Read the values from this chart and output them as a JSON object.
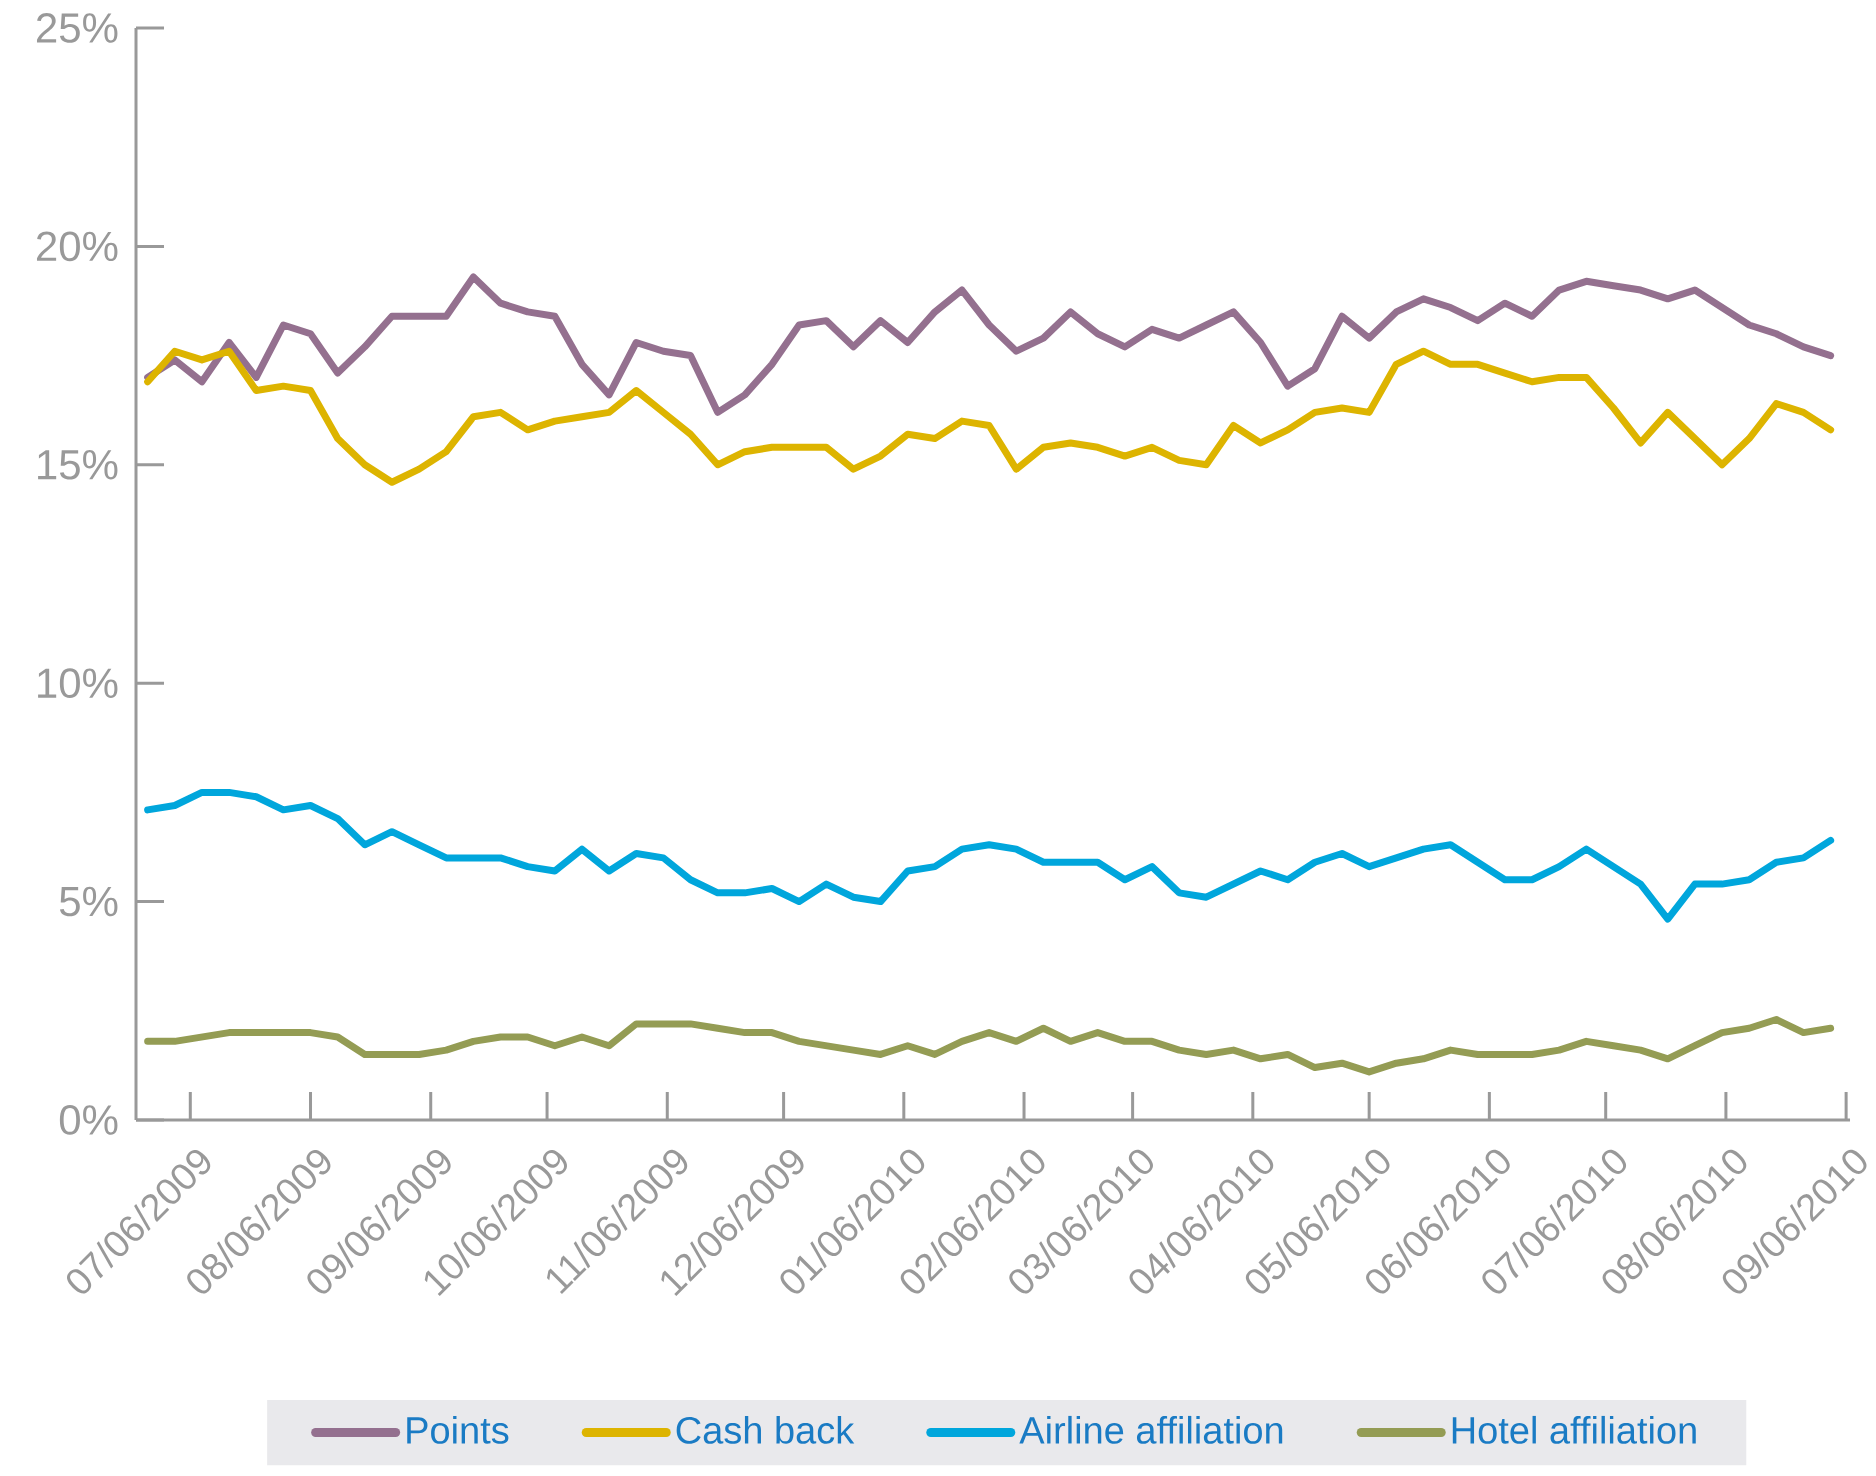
{
  "chart_data": {
    "type": "line",
    "legend": "bottom",
    "grid": false,
    "marker": "none",
    "line_style": "solid",
    "x": [
      "2009-06-25",
      "2009-07-02",
      "2009-07-09",
      "2009-07-16",
      "2009-07-23",
      "2009-07-30",
      "2009-08-06",
      "2009-08-13",
      "2009-08-20",
      "2009-08-27",
      "2009-09-03",
      "2009-09-10",
      "2009-09-17",
      "2009-09-24",
      "2009-10-01",
      "2009-10-08",
      "2009-10-15",
      "2009-10-22",
      "2009-10-29",
      "2009-11-05",
      "2009-11-12",
      "2009-11-19",
      "2009-11-26",
      "2009-12-03",
      "2009-12-10",
      "2009-12-17",
      "2009-12-24",
      "2009-12-31",
      "2010-01-07",
      "2010-01-14",
      "2010-01-21",
      "2010-01-28",
      "2010-02-04",
      "2010-02-11",
      "2010-02-18",
      "2010-02-25",
      "2010-03-04",
      "2010-03-11",
      "2010-03-18",
      "2010-03-25",
      "2010-04-01",
      "2010-04-08",
      "2010-04-15",
      "2010-04-22",
      "2010-04-29",
      "2010-05-06",
      "2010-05-13",
      "2010-05-20",
      "2010-05-27",
      "2010-06-03",
      "2010-06-10",
      "2010-06-17",
      "2010-06-24",
      "2010-07-01",
      "2010-07-08",
      "2010-07-15",
      "2010-07-22",
      "2010-07-29",
      "2010-08-05",
      "2010-08-12",
      "2010-08-19",
      "2010-08-26",
      "2010-09-02"
    ],
    "xlim": [
      "2009-06-22",
      "2010-09-07"
    ],
    "xticks": [
      {
        "value": "2009-07-06",
        "label": "07/06/2009"
      },
      {
        "value": "2009-08-06",
        "label": "08/06/2009"
      },
      {
        "value": "2009-09-06",
        "label": "09/06/2009"
      },
      {
        "value": "2009-10-06",
        "label": "10/06/2009"
      },
      {
        "value": "2009-11-06",
        "label": "11/06/2009"
      },
      {
        "value": "2009-12-06",
        "label": "12/06/2009"
      },
      {
        "value": "2010-01-06",
        "label": "01/06/2010"
      },
      {
        "value": "2010-02-06",
        "label": "02/06/2010"
      },
      {
        "value": "2010-03-06",
        "label": "03/06/2010"
      },
      {
        "value": "2010-04-06",
        "label": "04/06/2010"
      },
      {
        "value": "2010-05-06",
        "label": "05/06/2010"
      },
      {
        "value": "2010-06-06",
        "label": "06/06/2010"
      },
      {
        "value": "2010-07-06",
        "label": "07/06/2010"
      },
      {
        "value": "2010-08-06",
        "label": "08/06/2010"
      },
      {
        "value": "2010-09-06",
        "label": "09/06/2010"
      }
    ],
    "ylim": [
      0,
      25
    ],
    "yticks": [
      {
        "value": 0,
        "label": "0%"
      },
      {
        "value": 5,
        "label": "5%"
      },
      {
        "value": 10,
        "label": "10%"
      },
      {
        "value": 15,
        "label": "15%"
      },
      {
        "value": 20,
        "label": "20%"
      },
      {
        "value": 25,
        "label": "25%"
      }
    ],
    "series": [
      {
        "name": "Points",
        "color": "#94708f",
        "values": [
          17.0,
          17.4,
          16.9,
          17.8,
          17.0,
          18.2,
          18.0,
          17.1,
          17.7,
          18.4,
          18.4,
          18.4,
          19.3,
          18.7,
          18.5,
          18.4,
          17.3,
          16.6,
          17.8,
          17.6,
          17.5,
          16.2,
          16.6,
          17.3,
          18.2,
          18.3,
          17.7,
          18.3,
          17.8,
          18.5,
          19.0,
          18.2,
          17.6,
          17.9,
          18.5,
          18.0,
          17.7,
          18.1,
          17.9,
          18.2,
          18.5,
          17.8,
          16.8,
          17.2,
          18.4,
          17.9,
          18.5,
          18.8,
          18.6,
          18.3,
          18.7,
          18.4,
          19.0,
          19.2,
          19.1,
          19.0,
          18.8,
          19.0,
          18.6,
          18.2,
          18.0,
          17.7,
          17.5
        ]
      },
      {
        "name": "Cash back",
        "color": "#ddb400",
        "values": [
          16.9,
          17.6,
          17.4,
          17.6,
          16.7,
          16.8,
          16.7,
          15.6,
          15.0,
          14.6,
          14.9,
          15.3,
          16.1,
          16.2,
          15.8,
          16.0,
          16.1,
          16.2,
          16.7,
          16.2,
          15.7,
          15.0,
          15.3,
          15.4,
          15.4,
          15.4,
          14.9,
          15.2,
          15.7,
          15.6,
          16.0,
          15.9,
          14.9,
          15.4,
          15.5,
          15.4,
          15.2,
          15.4,
          15.1,
          15.0,
          15.9,
          15.5,
          15.8,
          16.2,
          16.3,
          16.2,
          17.3,
          17.6,
          17.3,
          17.3,
          17.1,
          16.9,
          17.0,
          17.0,
          16.3,
          15.5,
          16.2,
          15.6,
          15.0,
          15.6,
          16.4,
          16.2,
          15.8
        ]
      },
      {
        "name": "Airline affiliation",
        "color": "#00a6dc",
        "values": [
          7.1,
          7.2,
          7.5,
          7.5,
          7.4,
          7.1,
          7.2,
          6.9,
          6.3,
          6.6,
          6.3,
          6.0,
          6.0,
          6.0,
          5.8,
          5.7,
          6.2,
          5.7,
          6.1,
          6.0,
          5.5,
          5.2,
          5.2,
          5.3,
          5.0,
          5.4,
          5.1,
          5.0,
          5.7,
          5.8,
          6.2,
          6.3,
          6.2,
          5.9,
          5.9,
          5.9,
          5.5,
          5.8,
          5.2,
          5.1,
          5.4,
          5.7,
          5.5,
          5.9,
          6.1,
          5.8,
          6.0,
          6.2,
          6.3,
          5.9,
          5.5,
          5.5,
          5.8,
          6.2,
          5.8,
          5.4,
          4.6,
          5.4,
          5.4,
          5.5,
          5.9,
          6.0,
          6.4
        ]
      },
      {
        "name": "Hotel affiliation",
        "color": "#949c54",
        "values": [
          1.8,
          1.8,
          1.9,
          2.0,
          2.0,
          2.0,
          2.0,
          1.9,
          1.5,
          1.5,
          1.5,
          1.6,
          1.8,
          1.9,
          1.9,
          1.7,
          1.9,
          1.7,
          2.2,
          2.2,
          2.2,
          2.1,
          2.0,
          2.0,
          1.8,
          1.7,
          1.6,
          1.5,
          1.7,
          1.5,
          1.8,
          2.0,
          1.8,
          2.1,
          1.8,
          2.0,
          1.8,
          1.8,
          1.6,
          1.5,
          1.6,
          1.4,
          1.5,
          1.2,
          1.3,
          1.1,
          1.3,
          1.4,
          1.6,
          1.5,
          1.5,
          1.5,
          1.6,
          1.8,
          1.7,
          1.6,
          1.4,
          1.7,
          2.0,
          2.1,
          2.3,
          2.0,
          2.1
        ]
      }
    ]
  }
}
